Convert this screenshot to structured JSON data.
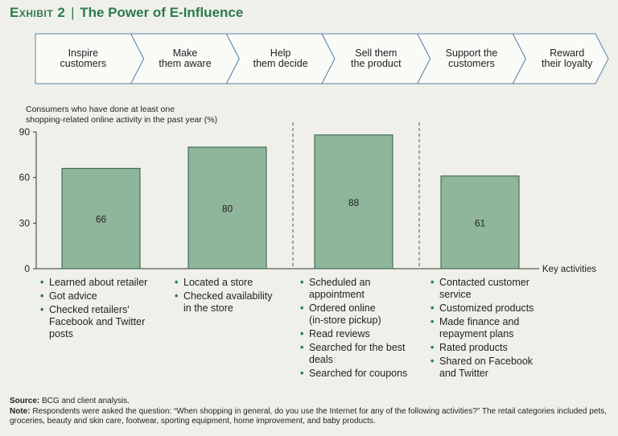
{
  "header": {
    "exhibit": "Exhibit 2",
    "title": "The Power of E-Influence"
  },
  "stages": [
    "Inspire\ncustomers",
    "Make\nthem aware",
    "Help\nthem decide",
    "Sell them\nthe product",
    "Support the\ncustomers",
    "Reward\ntheir loyalty"
  ],
  "chart_data": {
    "type": "bar",
    "title": "Consumers who have done at least one\nshopping-related online activity in the past year (%)",
    "xlabel": "Key activities",
    "ylabel": "",
    "ylim": [
      0,
      90
    ],
    "yticks": [
      0,
      30,
      60,
      90
    ],
    "categories": [
      "Learned about retailer / Got advice / Checked retailers' Facebook and Twitter posts",
      "Located a store / Checked availability in the store",
      "Scheduled an appointment / Ordered online / Read reviews / Searched for the best deals / Searched for coupons",
      "Contacted customer service / Customized products / Made finance and repayment plans / Rated products / Shared on Facebook and Twitter"
    ],
    "values": [
      66,
      80,
      88,
      61
    ],
    "bar_color": "#8fb59b",
    "bar_edge": "#2f5c45",
    "divider_after": [
      1,
      2
    ],
    "activities": [
      [
        "Learned about retailer",
        "Got advice",
        "Checked retailers'\nFacebook and Twitter\nposts"
      ],
      [
        "Located a store",
        "Checked availability\nin the store"
      ],
      [
        "Scheduled an\nappointment",
        "Ordered online\n(in-store pickup)",
        "Read reviews",
        "Searched for the best\ndeals",
        "Searched for coupons"
      ],
      [
        "Contacted customer\nservice",
        "Customized products",
        "Made finance and\nrepayment plans",
        "Rated products",
        "Shared on Facebook\nand Twitter"
      ]
    ]
  },
  "footer": {
    "source_label": "Source:",
    "source_text": " BCG and client analysis.",
    "note_label": "Note:",
    "note_text": " Respondents were asked the question: “When shopping in general, do you use the Internet for any of the following activities?” The retail categories included pets, groceries, beauty and skin care, footwear, sporting equipment, home improvement, and baby products."
  },
  "colors": {
    "accent": "#2c7a4b",
    "chevron_fill": "#fafaf7",
    "chevron_stroke": "#5a86a8"
  }
}
